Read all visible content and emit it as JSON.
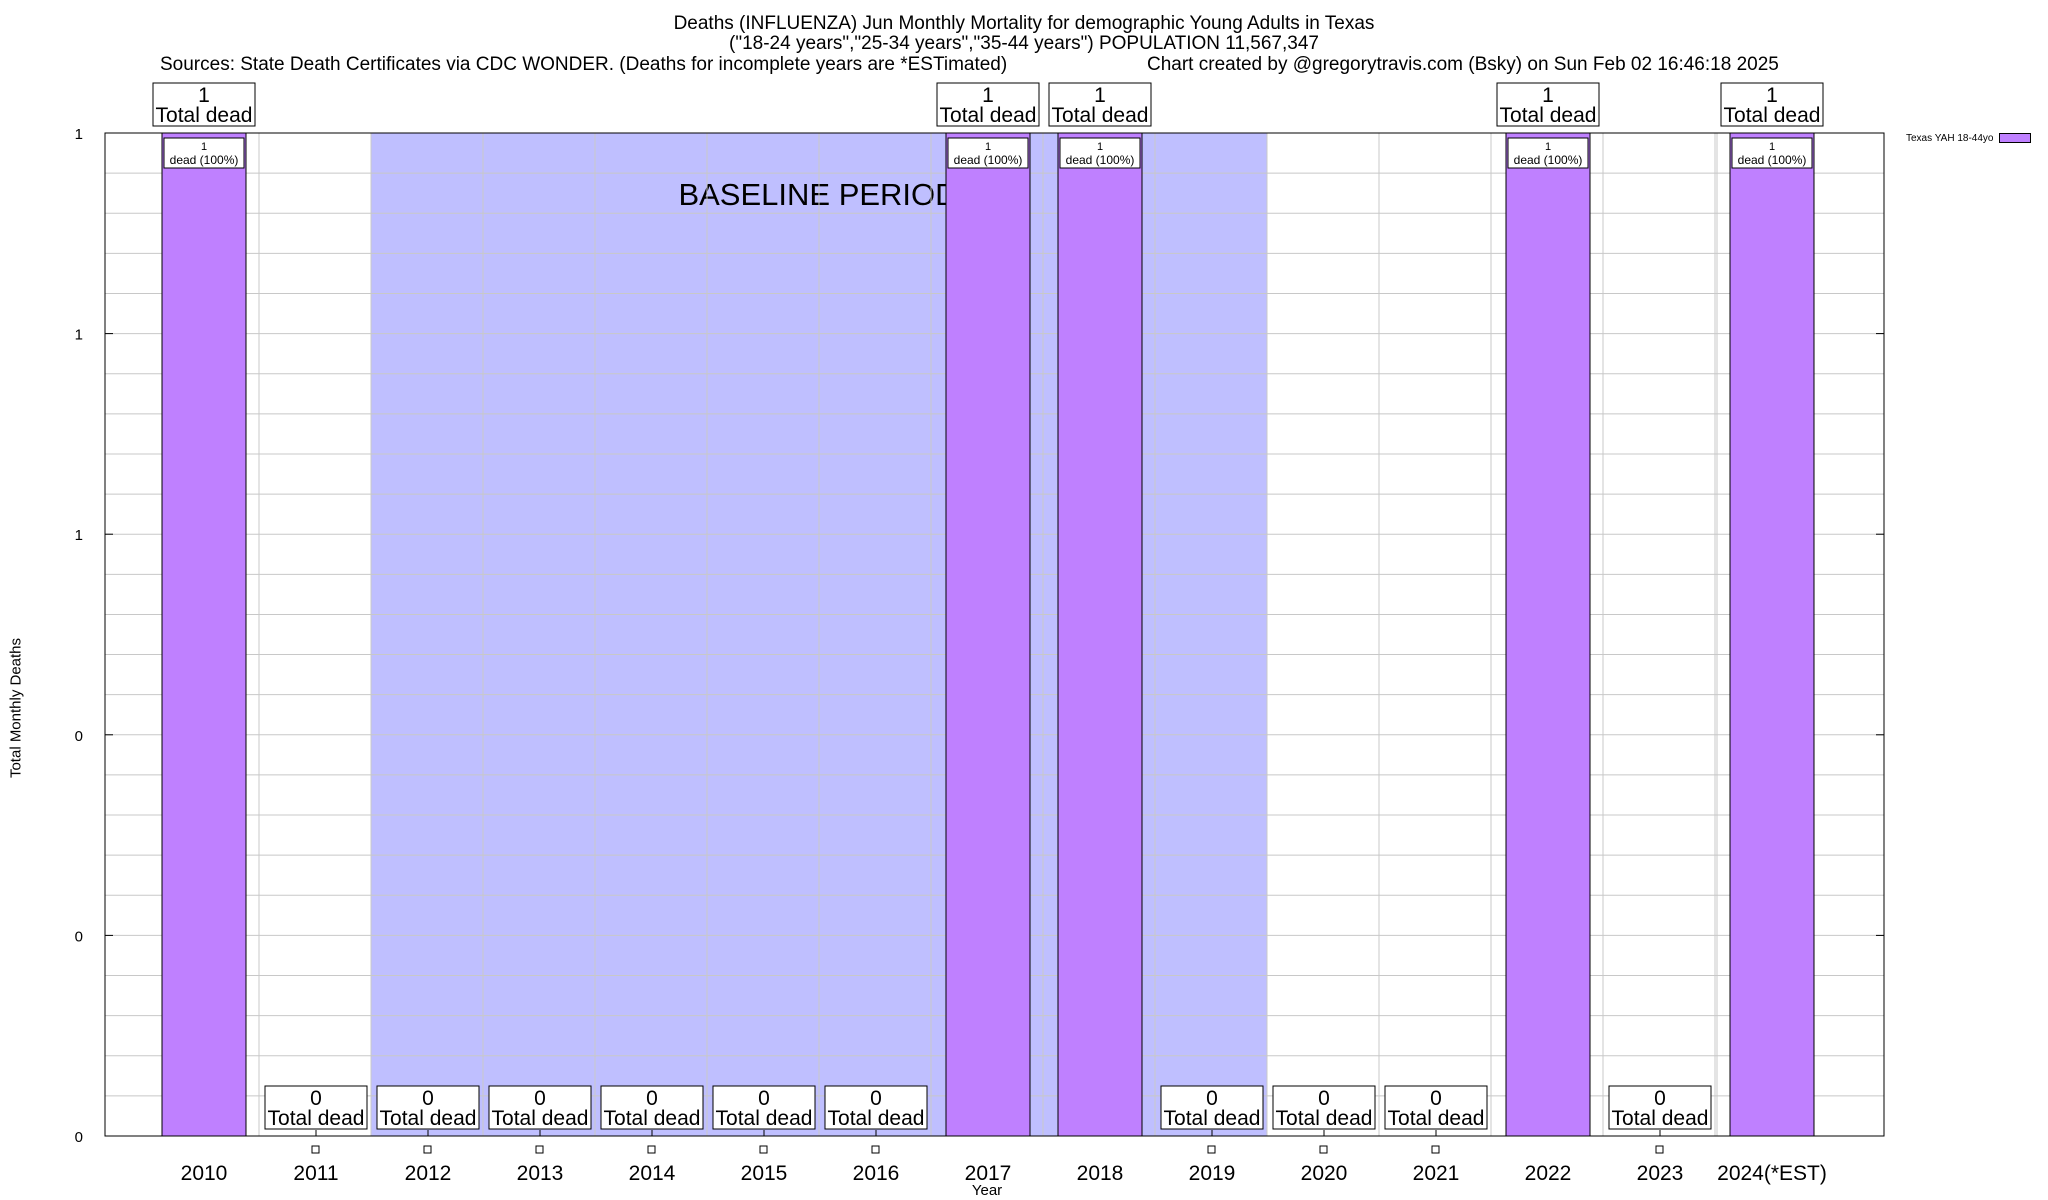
{
  "header": {
    "title": "Deaths (INFLUENZA) Jun Monthly Mortality for demographic Young Adults in Texas",
    "subtitle": "(\"18-24 years\",\"25-34 years\",\"35-44 years\") POPULATION 11,567,347",
    "sources": "Sources: State Death Certificates via CDC WONDER. (Deaths for incomplete years are *ESTimated)",
    "credit": "Chart created by @gregorytravis.com (Bsky) on Sun Feb 02 16:46:18 2025"
  },
  "colors": {
    "bar": "#bf80ff",
    "baseline": "#bfbfff",
    "grid": "#c8c8c8"
  },
  "chart_data": {
    "type": "bar",
    "title": "Deaths (INFLUENZA) Jun Monthly Mortality for demographic Young Adults in Texas",
    "xlabel": "Year",
    "ylabel": "Total Monthly Deaths",
    "categories": [
      "2010",
      "2011",
      "2012",
      "2013",
      "2014",
      "2015",
      "2016",
      "2017",
      "2018",
      "2019",
      "2020",
      "2021",
      "2022",
      "2023",
      "2024(*EST)"
    ],
    "series": [
      {
        "name": "Texas YAH 18-44yo",
        "values": [
          1,
          0,
          0,
          0,
          0,
          0,
          0,
          1,
          1,
          0,
          0,
          0,
          1,
          0,
          1
        ]
      }
    ],
    "ylim": [
      0,
      1
    ],
    "yticks": [
      0,
      0.2,
      0.4,
      0.6,
      0.8,
      1
    ],
    "ytick_labels": [
      "0",
      "0",
      "0",
      "1",
      "1",
      "1"
    ],
    "grid": true,
    "legend_position": "top-right",
    "total_label_suffix": "Total dead",
    "bar_label_suffix": "dead (100%)",
    "annotation": {
      "text": "BASELINE PERIOD",
      "x_range": [
        "2012",
        "2019"
      ]
    }
  }
}
